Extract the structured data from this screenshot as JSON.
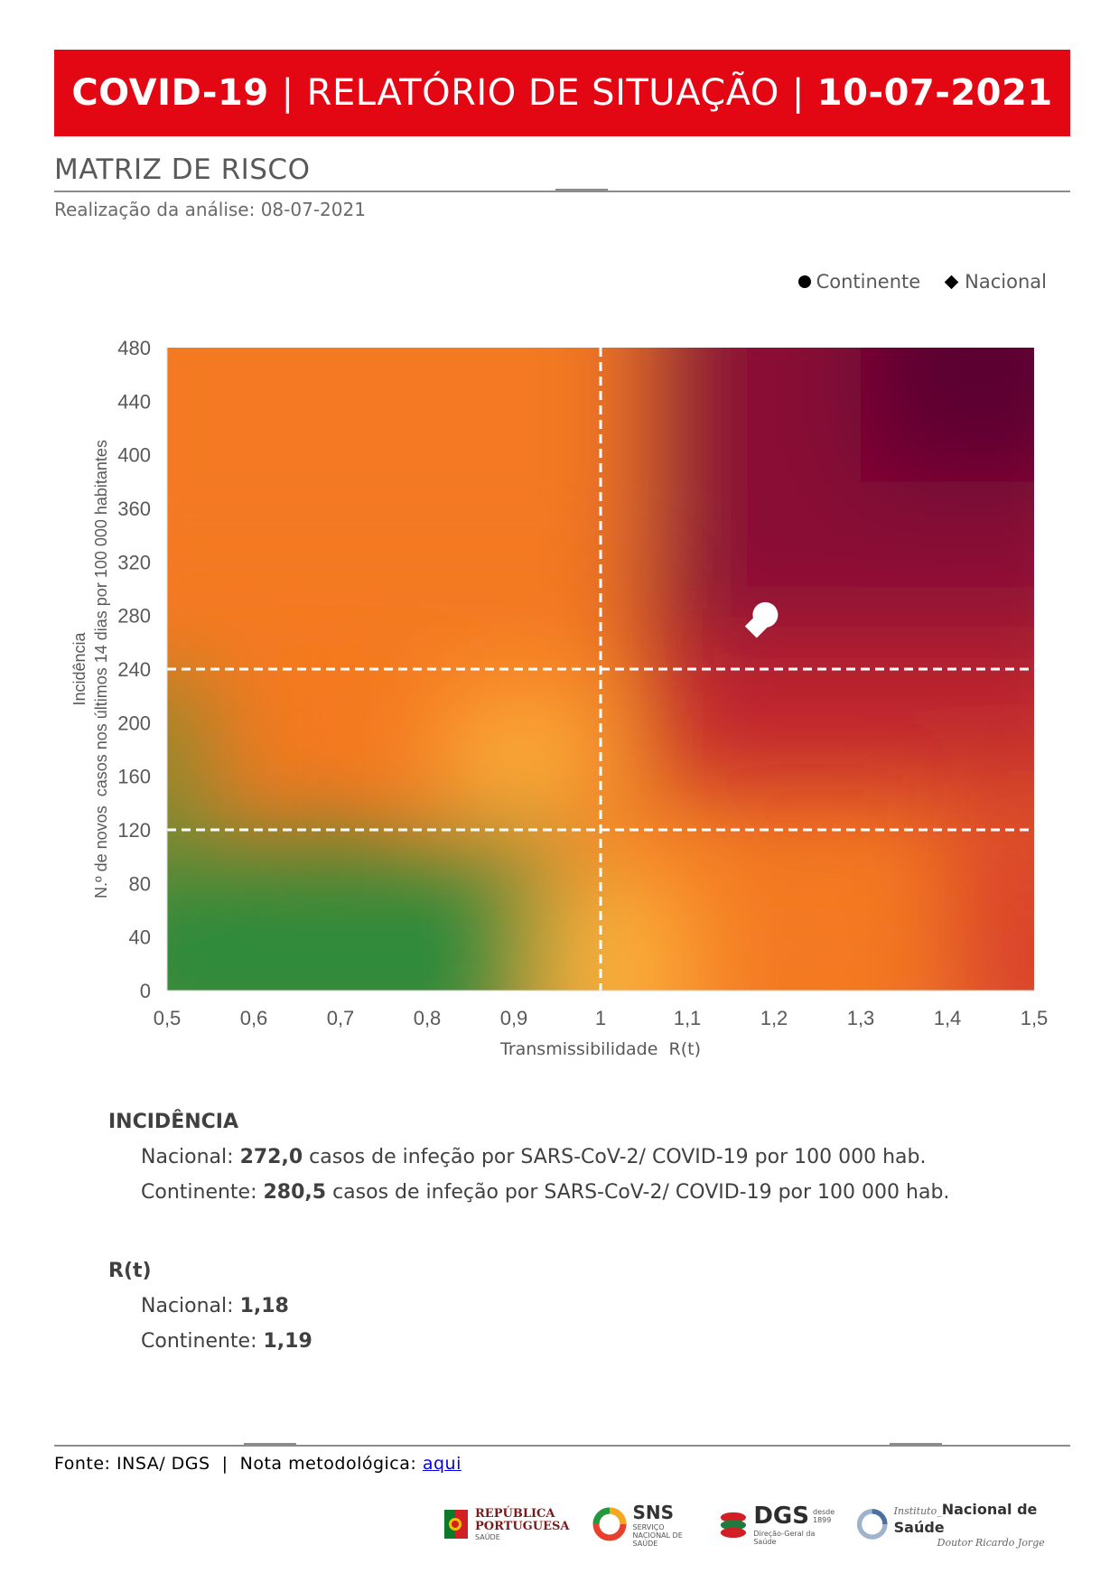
{
  "header": {
    "title_left": "COVID-19",
    "separator": "|",
    "title_mid": "RELATÓRIO DE SITUAÇÃO",
    "title_right": "10-07-2021"
  },
  "section": {
    "title": "MATRIZ DE RISCO",
    "analysis_date": "Realização da análise: 08-07-2021"
  },
  "legend": {
    "continente": "Continente",
    "nacional": "Nacional"
  },
  "chart_data": {
    "type": "scatter",
    "xlabel": "Transmissibilidade  R(t)",
    "ylabel_line1": "Incidência",
    "ylabel_line2": "N.º de novos  casos nos últimos 14 dias por 100 000 habitantes",
    "xlim": [
      0.5,
      1.5
    ],
    "ylim": [
      0,
      480
    ],
    "x_ticks": [
      "0,5",
      "0,6",
      "0,7",
      "0,8",
      "0,9",
      "1",
      "1,1",
      "1,2",
      "1,3",
      "1,4",
      "1,5"
    ],
    "y_ticks": [
      "0",
      "40",
      "80",
      "120",
      "160",
      "200",
      "240",
      "280",
      "320",
      "360",
      "400",
      "440",
      "480"
    ],
    "thresholds": {
      "x": [
        1.0
      ],
      "y": [
        120,
        240
      ]
    },
    "series": [
      {
        "name": "Continente",
        "marker": "circle",
        "x": [
          1.19
        ],
        "y": [
          280.5
        ]
      },
      {
        "name": "Nacional",
        "marker": "diamond",
        "x": [
          1.18
        ],
        "y": [
          272.0
        ]
      }
    ],
    "colors": {
      "green": "#2e8b3a",
      "yellow": "#fbb03b",
      "orange": "#f47920",
      "red": "#c0262d",
      "purple": "#5c0030",
      "marker": "#ffffff"
    }
  },
  "incidence": {
    "title": "INCIDÊNCIA",
    "nacional_label": "Nacional:",
    "nacional_value": "272,0",
    "nacional_suffix": " casos de infeção por SARS-CoV-2/ COVID-19 por 100 000 hab.",
    "continente_label": "Continente:",
    "continente_value": "280,5",
    "continente_suffix": " casos de infeção por SARS-CoV-2/ COVID-19 por 100 000 hab."
  },
  "rt": {
    "title": "R(t)",
    "nacional_label": "Nacional:",
    "nacional_value": "1,18",
    "continente_label": "Continente:",
    "continente_value": "1,19"
  },
  "footer": {
    "source": "Fonte: INSA/ DGS  |  Nota metodológica: ",
    "link": "aqui"
  },
  "logos": {
    "republica_line1": "REPÚBLICA",
    "republica_line2": "PORTUGUESA",
    "republica_line3": "SAÚDE",
    "sns": "SNS",
    "sns_sub": "SERVIÇO NACIONAL DE SAÚDE",
    "dgs": "DGS",
    "dgs_since": "desde 1899",
    "dgs_sub": "Direção-Geral da Saúde",
    "insa_prefix": "Instituto_",
    "insa_main": "Nacional de Saúde",
    "insa_sub": "Doutor Ricardo Jorge"
  }
}
